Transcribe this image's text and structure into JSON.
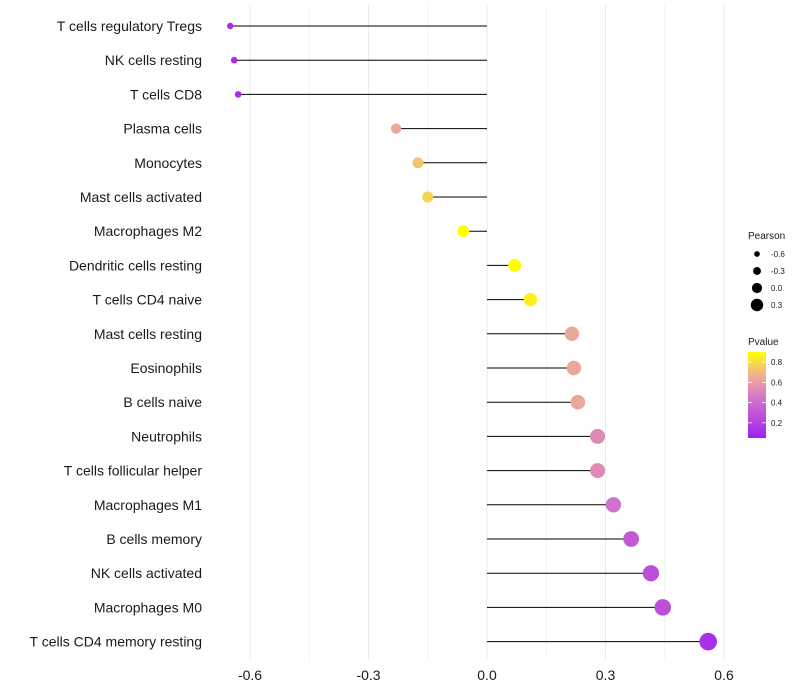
{
  "chart_data": {
    "type": "lollipop",
    "categories": [
      "T cells regulatory  Tregs",
      "NK cells resting",
      "T cells CD8",
      "Plasma cells",
      "Monocytes",
      "Mast cells activated",
      "Macrophages M2",
      "Dendritic cells resting",
      "T cells CD4 naive",
      "Mast cells resting",
      "Eosinophils",
      "B cells naive",
      "Neutrophils",
      "T cells follicular helper",
      "Macrophages M1",
      "B cells memory",
      "NK cells activated",
      "Macrophages M0",
      "T cells CD4 memory resting"
    ],
    "pearson": [
      -0.65,
      -0.64,
      -0.63,
      -0.23,
      -0.175,
      -0.15,
      -0.06,
      0.07,
      0.11,
      0.215,
      0.22,
      0.23,
      0.28,
      0.28,
      0.32,
      0.365,
      0.415,
      0.445,
      0.56
    ],
    "pvalue": [
      0.1,
      0.1,
      0.1,
      0.6,
      0.7,
      0.75,
      0.9,
      0.9,
      0.85,
      0.6,
      0.6,
      0.6,
      0.5,
      0.5,
      0.4,
      0.3,
      0.25,
      0.25,
      0.12
    ],
    "xlim": [
      -0.7,
      0.65
    ],
    "xticks": [
      -0.6,
      -0.3,
      0.0,
      0.3,
      0.6
    ],
    "xtick_labels": [
      "-0.6",
      "-0.3",
      "0.0",
      "0.3",
      "0.6"
    ],
    "legend_size": {
      "title": "Pearson",
      "values": [
        -0.6,
        -0.3,
        0.0,
        0.3
      ],
      "labels": [
        "-0.6",
        "-0.3",
        "0.0",
        "0.3"
      ]
    },
    "legend_color": {
      "title": "Pvalue",
      "ticks": [
        0.8,
        0.6,
        0.4,
        0.2
      ],
      "labels": [
        "0.8",
        "0.6",
        "0.4",
        "0.2"
      ],
      "range": [
        0.05,
        0.9
      ],
      "color_low": "#a020f0",
      "color_mid": "#e58fb5",
      "color_high": "#ffff00"
    },
    "stem_color": "#000000",
    "grid_color": "#ebebeb"
  }
}
